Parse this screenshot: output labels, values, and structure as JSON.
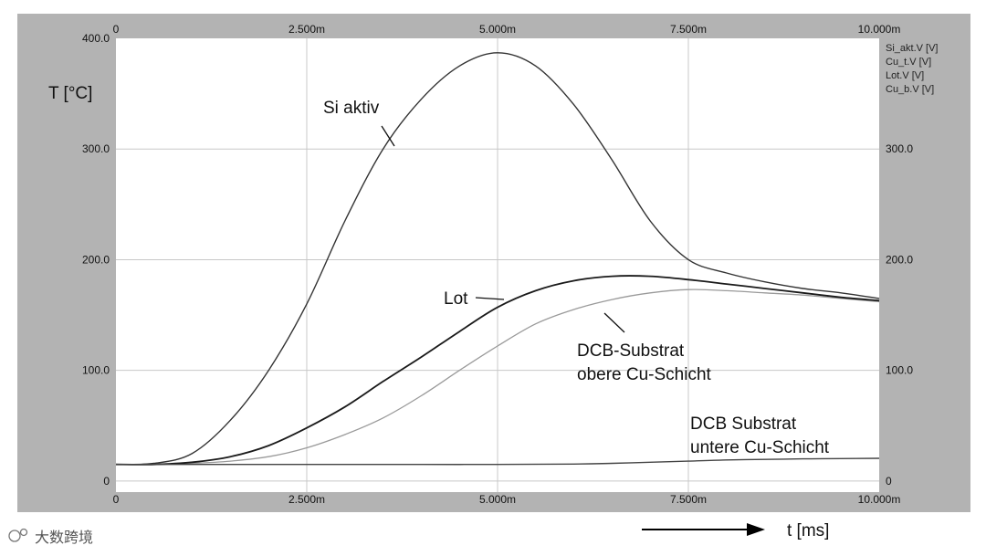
{
  "watermark": "大数跨境",
  "chart_data": {
    "type": "line",
    "x_unit_label": "t [ms]",
    "y_unit_label": "T [°C]",
    "xlim": [
      0,
      10
    ],
    "ylim": [
      -10,
      400
    ],
    "x_ticks": [
      {
        "v": 0,
        "label": "0"
      },
      {
        "v": 2.5,
        "label": "2.500m"
      },
      {
        "v": 5,
        "label": "5.000m"
      },
      {
        "v": 7.5,
        "label": "7.500m"
      },
      {
        "v": 10,
        "label": "10.000m"
      }
    ],
    "y_ticks_left": [
      {
        "v": 400,
        "label": "400.0"
      },
      {
        "v": 300,
        "label": "300.0"
      },
      {
        "v": 200,
        "label": "200.0"
      },
      {
        "v": 100,
        "label": "100.0"
      },
      {
        "v": 0,
        "label": "0"
      }
    ],
    "y_ticks_right": [
      {
        "v": 300,
        "label": "300.0"
      },
      {
        "v": 200,
        "label": "200.0"
      },
      {
        "v": 100,
        "label": "100.0"
      },
      {
        "v": 0,
        "label": "0"
      }
    ],
    "grid": true,
    "legend_position": "top-right",
    "series": [
      {
        "name": "Si_akt.V [V]",
        "color": "#333333",
        "x": [
          0,
          0.5,
          1,
          1.5,
          2,
          2.5,
          3,
          3.5,
          4,
          4.5,
          5,
          5.5,
          6,
          6.5,
          7,
          7.5,
          8,
          8.5,
          9,
          9.5,
          10
        ],
        "y": [
          15,
          16,
          25,
          55,
          100,
          160,
          235,
          300,
          345,
          375,
          387,
          375,
          340,
          290,
          235,
          200,
          188,
          180,
          174,
          170,
          165
        ]
      },
      {
        "name": "Cu_t.V [V]",
        "color": "#9a9a9a",
        "x": [
          0,
          0.5,
          1,
          1.5,
          2,
          2.5,
          3,
          3.5,
          4,
          4.5,
          5,
          5.5,
          6,
          6.5,
          7,
          7.5,
          8,
          8.5,
          9,
          9.5,
          10
        ],
        "y": [
          15,
          15,
          16,
          18,
          22,
          30,
          42,
          57,
          77,
          100,
          122,
          142,
          155,
          164,
          170,
          173,
          172,
          170,
          168,
          165,
          162
        ]
      },
      {
        "name": "Lot.V [V]",
        "color": "#1a1a1a",
        "x": [
          0,
          0.5,
          1,
          1.5,
          2,
          2.5,
          3,
          3.5,
          4,
          4.5,
          5,
          5.5,
          6,
          6.5,
          7,
          7.5,
          8,
          8.5,
          9,
          9.5,
          10
        ],
        "y": [
          15,
          15,
          17,
          22,
          32,
          48,
          67,
          90,
          112,
          135,
          157,
          172,
          181,
          185,
          185,
          182,
          178,
          174,
          170,
          166,
          163
        ]
      },
      {
        "name": "Cu_b.V [V]",
        "color": "#444444",
        "x": [
          0,
          1,
          2,
          3,
          4,
          5,
          6,
          6.5,
          7,
          7.5,
          8,
          8.5,
          9,
          9.5,
          10
        ],
        "y": [
          15,
          15,
          15,
          15,
          15,
          15,
          15.3,
          16,
          17,
          18,
          19,
          19.5,
          20,
          20.3,
          20.5
        ]
      }
    ],
    "annotations": [
      {
        "key": "si",
        "lines": [
          "Si aktiv"
        ]
      },
      {
        "key": "lot",
        "lines": [
          "Lot"
        ]
      },
      {
        "key": "dcb_top",
        "lines": [
          "DCB-Substrat",
          "obere Cu-Schicht"
        ]
      },
      {
        "key": "dcb_bottom",
        "lines": [
          "DCB Substrat",
          "untere Cu-Schicht"
        ]
      }
    ]
  }
}
